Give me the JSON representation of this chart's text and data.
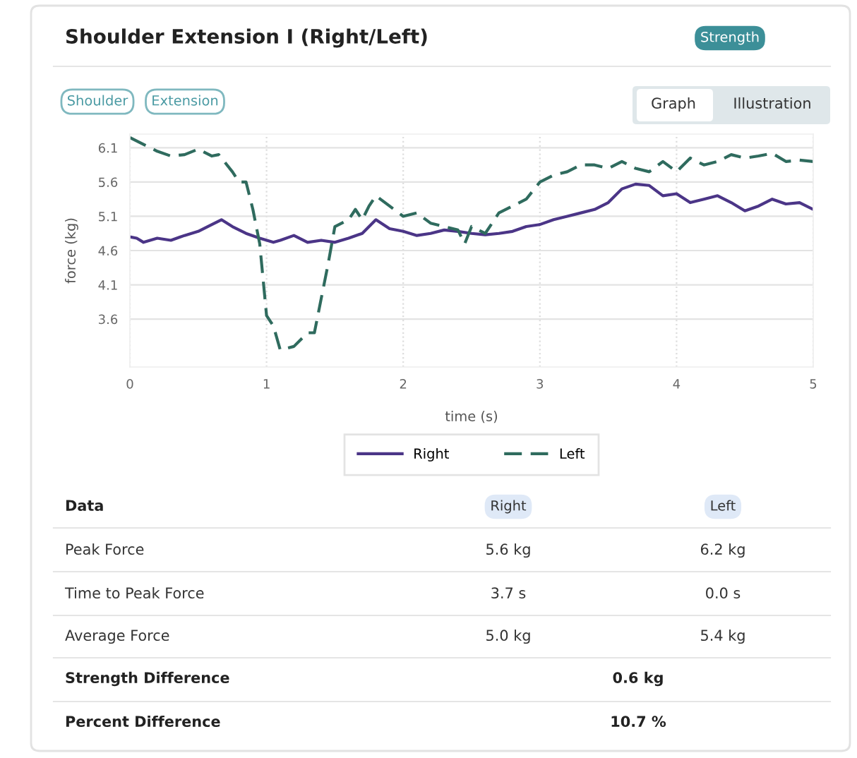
{
  "chart_data": {
    "type": "line",
    "title": "Shoulder Extension I (Right/Left)",
    "xlabel": "time (s)",
    "ylabel": "force (kg)",
    "xlim": [
      0,
      5
    ],
    "ylim": [
      2.9,
      6.3
    ],
    "xticks": [
      0,
      1,
      2,
      3,
      4,
      5
    ],
    "yticks": [
      3.6,
      4.1,
      4.6,
      5.1,
      5.6,
      6.1
    ],
    "grid": true,
    "legend": "bottom",
    "series": [
      {
        "name": "Right",
        "color": "#4b3587",
        "line_style": "solid",
        "x": [
          0,
          0.05,
          0.1,
          0.2,
          0.3,
          0.4,
          0.5,
          0.6,
          0.67,
          0.75,
          0.85,
          0.95,
          1.05,
          1.1,
          1.2,
          1.3,
          1.4,
          1.5,
          1.6,
          1.7,
          1.8,
          1.9,
          2.0,
          2.1,
          2.2,
          2.3,
          2.4,
          2.5,
          2.6,
          2.7,
          2.8,
          2.9,
          3.0,
          3.1,
          3.2,
          3.3,
          3.4,
          3.5,
          3.6,
          3.7,
          3.8,
          3.9,
          4.0,
          4.1,
          4.2,
          4.3,
          4.4,
          4.5,
          4.6,
          4.7,
          4.8,
          4.9,
          5.0
        ],
        "values": [
          4.8,
          4.78,
          4.72,
          4.78,
          4.75,
          4.82,
          4.88,
          4.98,
          5.05,
          4.95,
          4.85,
          4.78,
          4.72,
          4.75,
          4.82,
          4.72,
          4.75,
          4.72,
          4.78,
          4.85,
          5.05,
          4.92,
          4.88,
          4.82,
          4.85,
          4.9,
          4.88,
          4.85,
          4.83,
          4.85,
          4.88,
          4.95,
          4.98,
          5.05,
          5.1,
          5.15,
          5.2,
          5.3,
          5.5,
          5.57,
          5.55,
          5.4,
          5.43,
          5.3,
          5.35,
          5.4,
          5.3,
          5.18,
          5.25,
          5.35,
          5.28,
          5.3,
          5.2
        ]
      },
      {
        "name": "Left",
        "color": "#2f6b5e",
        "line_style": "dashed",
        "x": [
          0,
          0.1,
          0.2,
          0.3,
          0.4,
          0.5,
          0.6,
          0.65,
          0.75,
          0.8,
          0.85,
          0.9,
          0.95,
          1.0,
          1.05,
          1.1,
          1.2,
          1.3,
          1.35,
          1.4,
          1.45,
          1.5,
          1.6,
          1.65,
          1.7,
          1.75,
          1.8,
          1.9,
          2.0,
          2.1,
          2.2,
          2.3,
          2.4,
          2.45,
          2.5,
          2.6,
          2.7,
          2.8,
          2.9,
          3.0,
          3.1,
          3.2,
          3.3,
          3.4,
          3.5,
          3.6,
          3.7,
          3.8,
          3.9,
          4.0,
          4.1,
          4.2,
          4.3,
          4.4,
          4.5,
          4.6,
          4.7,
          4.8,
          4.9,
          5.0
        ],
        "values": [
          6.25,
          6.15,
          6.05,
          5.98,
          6.0,
          6.08,
          5.98,
          6.0,
          5.75,
          5.6,
          5.6,
          5.2,
          4.7,
          3.65,
          3.5,
          3.15,
          3.2,
          3.4,
          3.4,
          3.9,
          4.4,
          4.95,
          5.05,
          5.2,
          5.05,
          5.25,
          5.4,
          5.25,
          5.1,
          5.15,
          5.0,
          4.95,
          4.9,
          4.7,
          4.95,
          4.85,
          5.15,
          5.25,
          5.35,
          5.6,
          5.7,
          5.75,
          5.85,
          5.85,
          5.8,
          5.9,
          5.8,
          5.75,
          5.9,
          5.75,
          5.95,
          5.85,
          5.9,
          6.0,
          5.95,
          5.98,
          6.02,
          5.9,
          5.92,
          5.9
        ]
      }
    ],
    "annotations": [
      "Strength",
      "Shoulder",
      "Extension",
      "Graph",
      "Illustration",
      "Data",
      "Right",
      "Left",
      "Peak Force",
      "5.6 kg",
      "6.2 kg",
      "Time to Peak Force",
      "3.7 s",
      "0.0 s",
      "Average Force",
      "5.0 kg",
      "5.4 kg",
      "Strength Difference",
      "0.6 kg",
      "Percent Difference",
      "10.7 %"
    ]
  }
}
